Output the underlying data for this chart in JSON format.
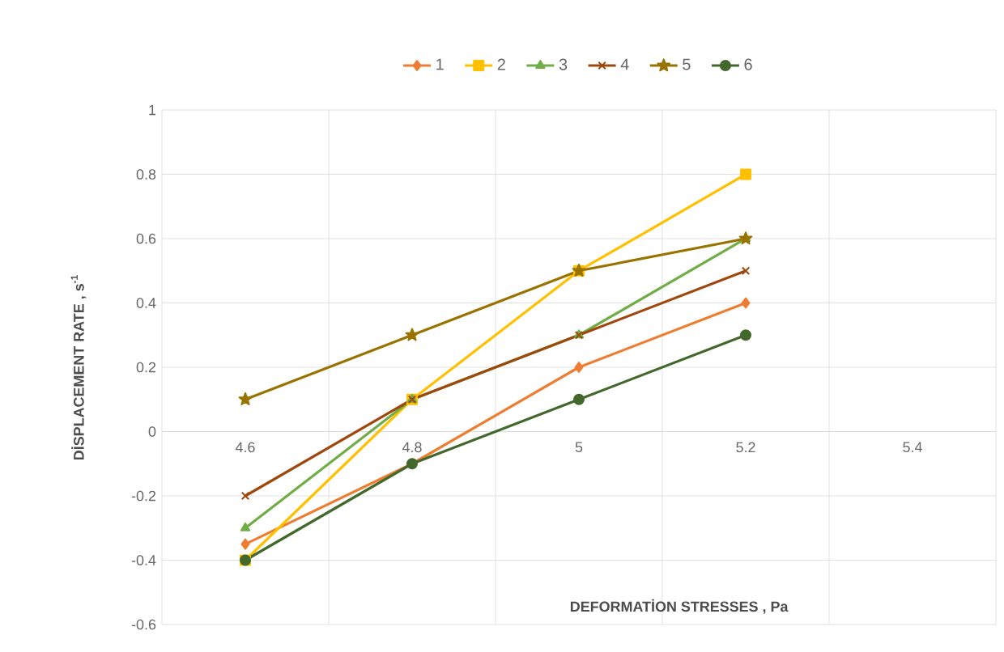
{
  "chart_data": {
    "type": "line",
    "xlabel": "DEFORMATİON STRESSES , Pa",
    "ylabel": "DİSPLACEMENT RATE , s$^{-1}$",
    "categories": [
      "4.6",
      "4.8",
      "5",
      "5.2",
      "5.4"
    ],
    "ylim": [
      -0.6,
      1
    ],
    "yticks": [
      -0.6,
      -0.4,
      -0.2,
      0,
      0.2,
      0.4,
      0.6,
      0.8,
      1
    ],
    "grid": true,
    "legend": "top",
    "series": [
      {
        "name": "1",
        "color": "#ed7d31",
        "marker": "diamond",
        "values": [
          -0.35,
          -0.1,
          0.2,
          0.4,
          null
        ]
      },
      {
        "name": "2",
        "color": "#ffc000",
        "marker": "square",
        "values": [
          -0.4,
          0.1,
          0.5,
          0.8,
          null
        ]
      },
      {
        "name": "3",
        "color": "#70ad47",
        "marker": "triangle",
        "values": [
          -0.3,
          0.1,
          0.3,
          0.6,
          null
        ]
      },
      {
        "name": "4",
        "color": "#9e480e",
        "marker": "cross",
        "values": [
          -0.2,
          0.1,
          0.3,
          0.5,
          null
        ]
      },
      {
        "name": "5",
        "color": "#997300",
        "marker": "star",
        "values": [
          0.1,
          0.3,
          0.5,
          0.6,
          null
        ]
      },
      {
        "name": "6",
        "color": "#43682b",
        "marker": "circle",
        "values": [
          -0.4,
          -0.1,
          0.1,
          0.3,
          null
        ]
      }
    ]
  }
}
